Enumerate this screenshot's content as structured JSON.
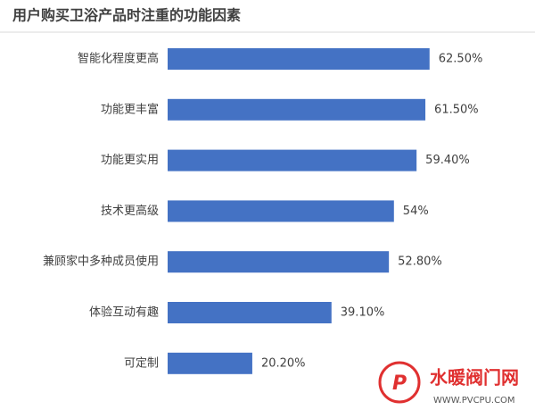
{
  "chart_data": {
    "type": "bar",
    "orientation": "horizontal",
    "title": "用户购买卫浴产品时注重的功能因素",
    "categories": [
      "智能化程度更高",
      "功能更丰富",
      "功能更实用",
      "技术更高级",
      "兼顾家中多种成员使用",
      "体验互动有趣",
      "可定制"
    ],
    "values": [
      62.5,
      61.5,
      59.4,
      54,
      52.8,
      39.1,
      20.2
    ],
    "value_labels": [
      "62.50%",
      "61.50%",
      "59.40%",
      "54%",
      "52.80%",
      "39.10%",
      "20.20%"
    ],
    "color": "#4472c4"
  },
  "watermark": {
    "name": "水暖阀门网",
    "url": "WWW.PVCPU.COM"
  }
}
